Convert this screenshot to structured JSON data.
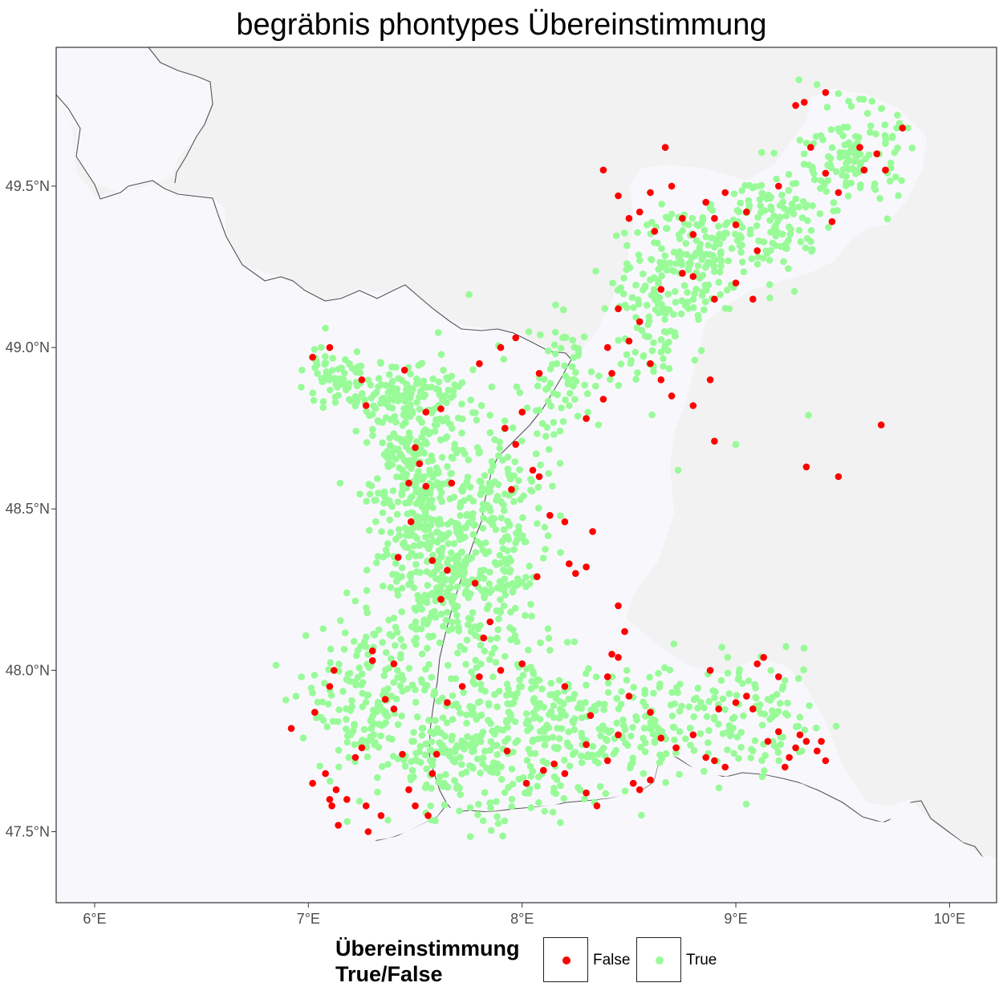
{
  "title": "begräbnis phontypes Übereinstimmung",
  "axes": {
    "x_ticks": [
      {
        "value": 6,
        "label": "6°E"
      },
      {
        "value": 7,
        "label": "7°E"
      },
      {
        "value": 8,
        "label": "8°E"
      },
      {
        "value": 9,
        "label": "9°E"
      },
      {
        "value": 10,
        "label": "10°E"
      }
    ],
    "y_ticks": [
      {
        "value": 47.5,
        "label": "47.5°N"
      },
      {
        "value": 48.0,
        "label": "48.0°N"
      },
      {
        "value": 48.5,
        "label": "48.5°N"
      },
      {
        "value": 49.0,
        "label": "49.0°N"
      },
      {
        "value": 49.5,
        "label": "49.5°N"
      }
    ],
    "xlim": [
      5.82,
      10.22
    ],
    "ylim": [
      47.28,
      49.93
    ]
  },
  "legend": {
    "title_line1": "Übereinstimmung",
    "title_line2": "True/False",
    "items": [
      {
        "label": "False",
        "color": "#ff0000"
      },
      {
        "label": "True",
        "color": "#98fb98"
      }
    ]
  },
  "colors": {
    "study_area": "#f8f8fc",
    "outside_area": "#f2f2f2",
    "border_line": "#555555",
    "false_point": "#ff0000",
    "true_point": "#98fb98"
  },
  "chart_data": {
    "type": "scatter",
    "projection": "lon/lat",
    "xlabel": "",
    "ylabel": "",
    "series": [
      {
        "name": "False",
        "points": [
          [
            9.42,
            49.79
          ],
          [
            9.32,
            49.76
          ],
          [
            9.58,
            49.62
          ],
          [
            9.6,
            49.55
          ],
          [
            9.66,
            49.6
          ],
          [
            9.7,
            49.55
          ],
          [
            9.78,
            49.68
          ],
          [
            9.42,
            49.54
          ],
          [
            9.35,
            49.62
          ],
          [
            9.48,
            49.48
          ],
          [
            9.45,
            49.39
          ],
          [
            9.28,
            49.75
          ],
          [
            8.38,
            49.55
          ],
          [
            8.45,
            49.47
          ],
          [
            8.5,
            49.4
          ],
          [
            8.55,
            49.42
          ],
          [
            8.6,
            49.48
          ],
          [
            8.62,
            49.36
          ],
          [
            8.67,
            49.62
          ],
          [
            8.7,
            49.5
          ],
          [
            8.75,
            49.4
          ],
          [
            8.8,
            49.35
          ],
          [
            8.86,
            49.45
          ],
          [
            8.9,
            49.4
          ],
          [
            8.95,
            49.48
          ],
          [
            9.0,
            49.38
          ],
          [
            9.05,
            49.42
          ],
          [
            9.1,
            49.3
          ],
          [
            9.2,
            49.5
          ],
          [
            8.75,
            49.23
          ],
          [
            8.65,
            49.18
          ],
          [
            8.8,
            49.22
          ],
          [
            8.9,
            49.15
          ],
          [
            9.0,
            49.2
          ],
          [
            9.08,
            49.15
          ],
          [
            8.55,
            49.08
          ],
          [
            8.45,
            49.12
          ],
          [
            8.5,
            49.02
          ],
          [
            8.4,
            49.0
          ],
          [
            8.6,
            48.95
          ],
          [
            8.65,
            48.9
          ],
          [
            8.7,
            48.85
          ],
          [
            8.8,
            48.82
          ],
          [
            8.88,
            48.9
          ],
          [
            8.9,
            48.71
          ],
          [
            9.33,
            48.63
          ],
          [
            9.48,
            48.6
          ],
          [
            9.68,
            48.76
          ],
          [
            8.42,
            48.92
          ],
          [
            8.38,
            48.84
          ],
          [
            8.3,
            48.78
          ],
          [
            7.02,
            48.97
          ],
          [
            7.1,
            49.0
          ],
          [
            7.25,
            48.9
          ],
          [
            7.27,
            48.82
          ],
          [
            7.45,
            48.93
          ],
          [
            7.8,
            48.95
          ],
          [
            7.9,
            49.0
          ],
          [
            7.97,
            49.03
          ],
          [
            8.08,
            48.92
          ],
          [
            7.92,
            48.75
          ],
          [
            7.97,
            48.7
          ],
          [
            8.0,
            48.8
          ],
          [
            8.05,
            48.62
          ],
          [
            8.08,
            48.6
          ],
          [
            7.95,
            48.56
          ],
          [
            8.13,
            48.48
          ],
          [
            8.2,
            48.46
          ],
          [
            8.33,
            48.43
          ],
          [
            8.22,
            48.33
          ],
          [
            8.25,
            48.3
          ],
          [
            8.3,
            48.32
          ],
          [
            8.07,
            48.29
          ],
          [
            7.5,
            48.69
          ],
          [
            7.52,
            48.64
          ],
          [
            7.47,
            48.58
          ],
          [
            7.55,
            48.57
          ],
          [
            7.67,
            48.58
          ],
          [
            7.62,
            48.81
          ],
          [
            7.55,
            48.8
          ],
          [
            7.48,
            48.46
          ],
          [
            7.58,
            48.34
          ],
          [
            7.65,
            48.31
          ],
          [
            7.1,
            47.6
          ],
          [
            7.13,
            47.63
          ],
          [
            7.11,
            47.58
          ],
          [
            7.14,
            47.52
          ],
          [
            7.08,
            47.68
          ],
          [
            7.18,
            47.6
          ],
          [
            7.27,
            47.58
          ],
          [
            7.22,
            47.73
          ],
          [
            7.25,
            47.76
          ],
          [
            7.28,
            47.5
          ],
          [
            7.34,
            47.55
          ],
          [
            6.92,
            47.82
          ],
          [
            7.03,
            47.87
          ],
          [
            7.1,
            47.95
          ],
          [
            7.12,
            48.0
          ],
          [
            7.3,
            48.06
          ],
          [
            7.3,
            48.03
          ],
          [
            7.36,
            47.91
          ],
          [
            7.4,
            47.88
          ],
          [
            7.44,
            47.74
          ],
          [
            7.47,
            47.63
          ],
          [
            7.5,
            47.58
          ],
          [
            7.56,
            47.55
          ],
          [
            7.58,
            47.68
          ],
          [
            7.6,
            47.74
          ],
          [
            7.65,
            47.9
          ],
          [
            7.72,
            47.95
          ],
          [
            7.8,
            47.98
          ],
          [
            7.9,
            48.0
          ],
          [
            8.0,
            48.02
          ],
          [
            7.93,
            47.75
          ],
          [
            8.02,
            47.65
          ],
          [
            8.1,
            47.69
          ],
          [
            8.15,
            47.71
          ],
          [
            8.2,
            47.68
          ],
          [
            8.3,
            47.62
          ],
          [
            8.35,
            47.58
          ],
          [
            8.4,
            47.72
          ],
          [
            8.45,
            47.8
          ],
          [
            8.52,
            47.65
          ],
          [
            8.55,
            47.63
          ],
          [
            8.6,
            47.66
          ],
          [
            8.65,
            47.79
          ],
          [
            8.72,
            47.76
          ],
          [
            8.8,
            47.8
          ],
          [
            8.86,
            47.73
          ],
          [
            8.9,
            47.72
          ],
          [
            8.95,
            47.7
          ],
          [
            9.0,
            47.9
          ],
          [
            9.05,
            47.92
          ],
          [
            9.08,
            47.88
          ],
          [
            9.1,
            48.02
          ],
          [
            9.13,
            48.04
          ],
          [
            9.2,
            47.98
          ],
          [
            9.23,
            47.7
          ],
          [
            9.25,
            47.73
          ],
          [
            9.28,
            47.76
          ],
          [
            9.3,
            47.8
          ],
          [
            9.33,
            47.78
          ],
          [
            9.38,
            47.75
          ],
          [
            9.4,
            47.78
          ],
          [
            9.42,
            47.72
          ],
          [
            8.92,
            47.88
          ],
          [
            8.88,
            48.0
          ],
          [
            8.45,
            48.04
          ],
          [
            8.4,
            47.98
          ],
          [
            8.5,
            47.92
          ],
          [
            8.48,
            48.12
          ],
          [
            8.42,
            48.05
          ],
          [
            8.45,
            48.2
          ],
          [
            8.3,
            47.77
          ],
          [
            8.32,
            47.86
          ],
          [
            8.2,
            47.95
          ],
          [
            7.82,
            48.1
          ],
          [
            7.85,
            48.15
          ],
          [
            7.78,
            48.27
          ],
          [
            7.62,
            48.22
          ],
          [
            7.42,
            48.35
          ],
          [
            7.4,
            48.02
          ],
          [
            9.15,
            47.78
          ],
          [
            9.2,
            47.81
          ],
          [
            8.6,
            47.87
          ],
          [
            7.02,
            47.65
          ]
        ]
      },
      {
        "name": "True",
        "density_regions": [
          {
            "center": [
              7.5,
              48.6
            ],
            "spread": [
              0.18,
              0.25
            ],
            "count": 260
          },
          {
            "center": [
              7.6,
              48.3
            ],
            "spread": [
              0.22,
              0.25
            ],
            "count": 260
          },
          {
            "center": [
              7.45,
              48.85
            ],
            "spread": [
              0.25,
              0.08
            ],
            "count": 120
          },
          {
            "center": [
              7.1,
              48.9
            ],
            "spread": [
              0.12,
              0.06
            ],
            "count": 50
          },
          {
            "center": [
              7.9,
              48.4
            ],
            "spread": [
              0.22,
              0.45
            ],
            "count": 260
          },
          {
            "center": [
              7.3,
              47.9
            ],
            "spread": [
              0.25,
              0.22
            ],
            "count": 180
          },
          {
            "center": [
              7.75,
              47.75
            ],
            "spread": [
              0.3,
              0.18
            ],
            "count": 220
          },
          {
            "center": [
              8.2,
              47.8
            ],
            "spread": [
              0.25,
              0.2
            ],
            "count": 160
          },
          {
            "center": [
              8.65,
              47.85
            ],
            "spread": [
              0.25,
              0.15
            ],
            "count": 110
          },
          {
            "center": [
              9.1,
              47.85
            ],
            "spread": [
              0.25,
              0.15
            ],
            "count": 100
          },
          {
            "center": [
              8.2,
              48.9
            ],
            "spread": [
              0.15,
              0.15
            ],
            "count": 60
          },
          {
            "center": [
              8.6,
              49.1
            ],
            "spread": [
              0.18,
              0.18
            ],
            "count": 110
          },
          {
            "center": [
              8.8,
              49.3
            ],
            "spread": [
              0.22,
              0.15
            ],
            "count": 140
          },
          {
            "center": [
              9.2,
              49.4
            ],
            "spread": [
              0.2,
              0.15
            ],
            "count": 110
          },
          {
            "center": [
              9.55,
              49.6
            ],
            "spread": [
              0.18,
              0.12
            ],
            "count": 120
          }
        ],
        "extra_points": [
          [
            7.08,
            49.06
          ],
          [
            9.34,
            48.79
          ],
          [
            9.0,
            48.7
          ],
          [
            8.73,
            48.62
          ],
          [
            7.18,
            48.24
          ],
          [
            6.97,
            48.93
          ],
          [
            9.68,
            49.74
          ]
        ]
      }
    ]
  }
}
